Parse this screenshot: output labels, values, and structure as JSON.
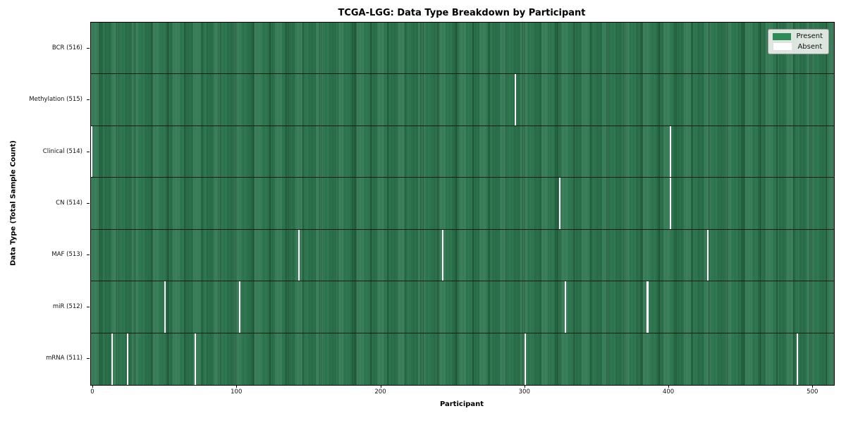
{
  "chart_data": {
    "type": "heatmap",
    "title": "TCGA-LGG: Data Type Breakdown by Participant",
    "xlabel": "Participant",
    "ylabel": "Data Type (Total Sample Count)",
    "x_ticks": [
      0,
      100,
      200,
      300,
      400,
      500
    ],
    "x_range": [
      0,
      516
    ],
    "total_participants": 516,
    "grid": false,
    "legend": {
      "position": "upper right",
      "entries": [
        {
          "name": "present",
          "label": "Present",
          "color": "#2e8b57"
        },
        {
          "name": "absent",
          "label": "Absent",
          "color": "#ffffff"
        }
      ]
    },
    "colors": {
      "present": "#2e8b57",
      "present_edge": "#17482b",
      "absent": "#ffffff",
      "legend_background": "#ebf0eb"
    },
    "rows": [
      {
        "data_type": "BCR",
        "label": "BCR (516)",
        "present_count": 516,
        "absent_participants": []
      },
      {
        "data_type": "Methylation",
        "label": "Methylation (515)",
        "present_count": 515,
        "absent_participants": [
          294
        ]
      },
      {
        "data_type": "Clinical",
        "label": "Clinical (514)",
        "present_count": 514,
        "absent_participants": [
          0,
          402
        ]
      },
      {
        "data_type": "CN",
        "label": "CN (514)",
        "present_count": 514,
        "absent_participants": [
          325,
          402
        ]
      },
      {
        "data_type": "MAF",
        "label": "MAF (513)",
        "present_count": 513,
        "absent_participants": [
          144,
          244,
          428
        ]
      },
      {
        "data_type": "miR",
        "label": "miR (512)",
        "present_count": 512,
        "absent_participants": [
          51,
          103,
          329,
          386
        ]
      },
      {
        "data_type": "mRNA",
        "label": "mRNA (511)",
        "present_count": 511,
        "absent_participants": [
          14,
          25,
          72,
          301,
          490
        ]
      }
    ]
  }
}
